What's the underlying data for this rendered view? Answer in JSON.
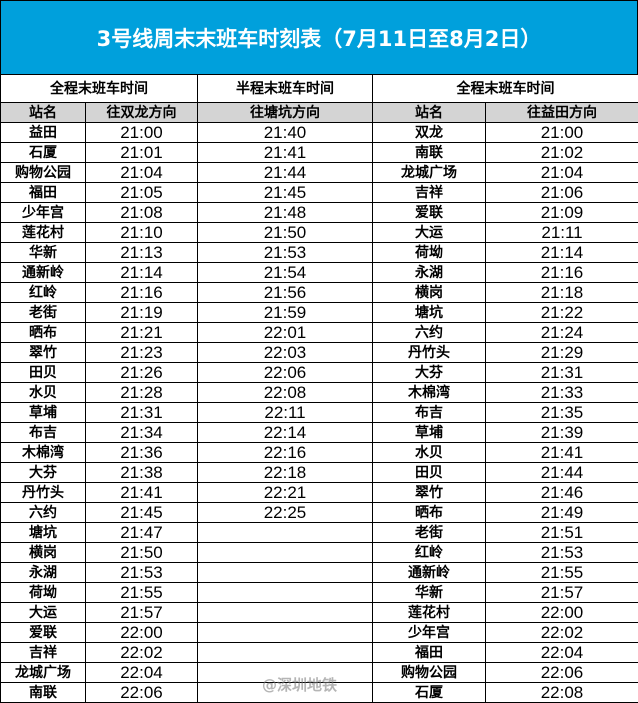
{
  "title": "3号线周末末班车时刻表（7月11日至8月2日）",
  "headers": {
    "full1": "全程末班车时间",
    "half": "半程末班车时间",
    "full2": "全程末班车时间",
    "station1": "站名",
    "dir1": "往双龙方向",
    "dir_half": "往塘坑方向",
    "station2": "站名",
    "dir2": "往益田方向"
  },
  "rows": [
    [
      "益田",
      "21:00",
      "21:40",
      "双龙",
      "21:00"
    ],
    [
      "石厦",
      "21:01",
      "21:41",
      "南联",
      "21:02"
    ],
    [
      "购物公园",
      "21:04",
      "21:44",
      "龙城广场",
      "21:04"
    ],
    [
      "福田",
      "21:05",
      "21:45",
      "吉祥",
      "21:06"
    ],
    [
      "少年宫",
      "21:08",
      "21:48",
      "爱联",
      "21:09"
    ],
    [
      "莲花村",
      "21:10",
      "21:50",
      "大运",
      "21:11"
    ],
    [
      "华新",
      "21:13",
      "21:53",
      "荷坳",
      "21:14"
    ],
    [
      "通新岭",
      "21:14",
      "21:54",
      "永湖",
      "21:16"
    ],
    [
      "红岭",
      "21:16",
      "21:56",
      "横岗",
      "21:18"
    ],
    [
      "老街",
      "21:19",
      "21:59",
      "塘坑",
      "21:22"
    ],
    [
      "晒布",
      "21:21",
      "22:01",
      "六约",
      "21:24"
    ],
    [
      "翠竹",
      "21:23",
      "22:03",
      "丹竹头",
      "21:29"
    ],
    [
      "田贝",
      "21:26",
      "22:06",
      "大芬",
      "21:31"
    ],
    [
      "水贝",
      "21:28",
      "22:08",
      "木棉湾",
      "21:33"
    ],
    [
      "草埔",
      "21:31",
      "22:11",
      "布吉",
      "21:35"
    ],
    [
      "布吉",
      "21:34",
      "22:14",
      "草埔",
      "21:39"
    ],
    [
      "木棉湾",
      "21:36",
      "22:16",
      "水贝",
      "21:41"
    ],
    [
      "大芬",
      "21:38",
      "22:18",
      "田贝",
      "21:44"
    ],
    [
      "丹竹头",
      "21:41",
      "22:21",
      "翠竹",
      "21:46"
    ],
    [
      "六约",
      "21:45",
      "22:25",
      "晒布",
      "21:49"
    ],
    [
      "塘坑",
      "21:47",
      "",
      "老街",
      "21:51"
    ],
    [
      "横岗",
      "21:50",
      "",
      "红岭",
      "21:53"
    ],
    [
      "永湖",
      "21:53",
      "",
      "通新岭",
      "21:55"
    ],
    [
      "荷坳",
      "21:55",
      "",
      "华新",
      "21:57"
    ],
    [
      "大运",
      "21:57",
      "",
      "莲花村",
      "22:00"
    ],
    [
      "爱联",
      "22:00",
      "",
      "少年宫",
      "22:02"
    ],
    [
      "吉祥",
      "22:02",
      "",
      "福田",
      "22:04"
    ],
    [
      "龙城广场",
      "22:04",
      "",
      "购物公园",
      "22:06"
    ],
    [
      "南联",
      "22:06",
      "",
      "石厦",
      "22:08"
    ]
  ],
  "watermark": "@深圳地铁",
  "colors": {
    "title_bg": "#00a0dc",
    "header_bg": "#d4d4d4"
  }
}
